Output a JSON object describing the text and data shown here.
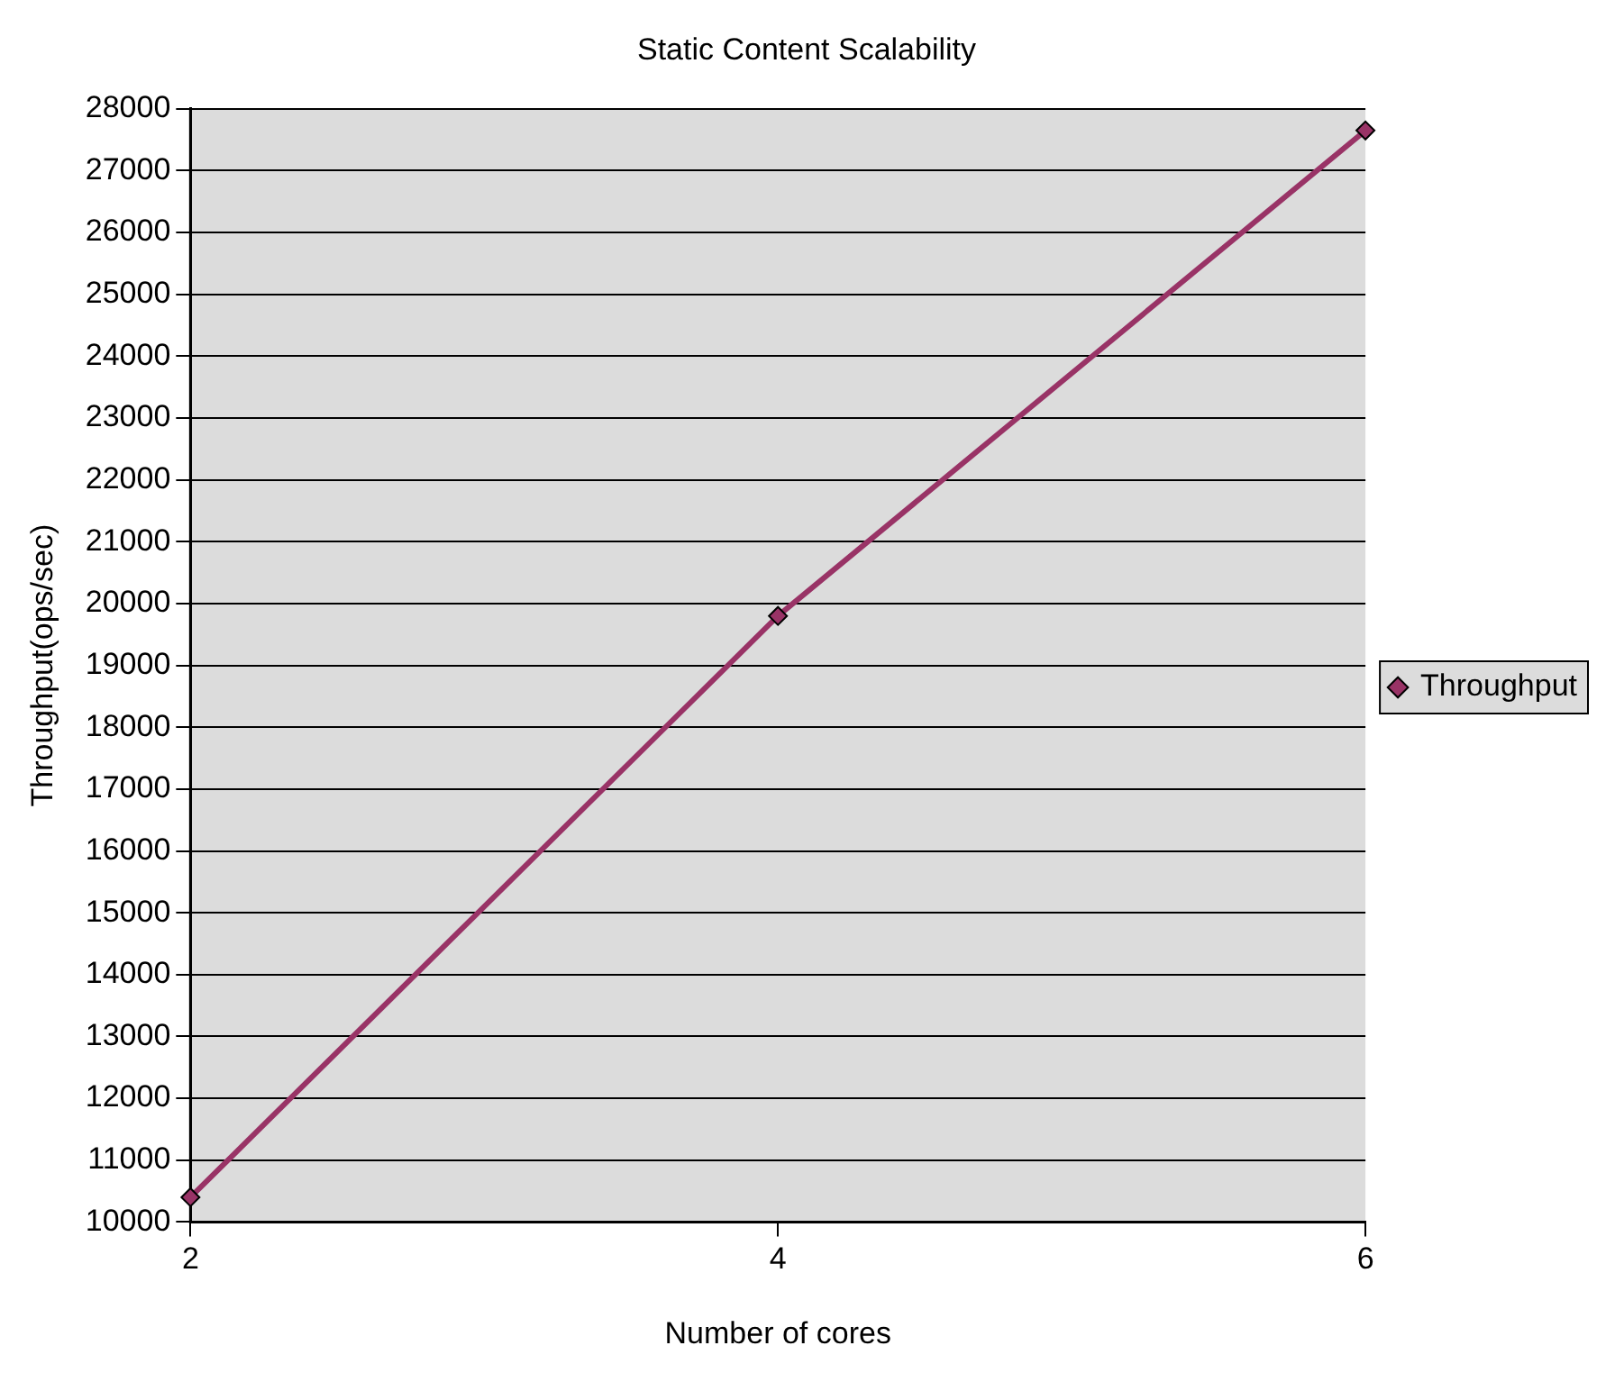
{
  "chart_data": {
    "type": "line",
    "title": "Static Content Scalability",
    "xlabel": "Number of cores",
    "ylabel": "Throughput(ops/sec)",
    "x": [
      2,
      4,
      6
    ],
    "series": [
      {
        "name": "Throughput",
        "color": "#993366",
        "values": [
          10400,
          19800,
          27650
        ]
      }
    ],
    "xlim": [
      2,
      6
    ],
    "xticks": [
      2,
      4,
      6
    ],
    "ylim": [
      10000,
      28000
    ],
    "yticks": [
      10000,
      11000,
      12000,
      13000,
      14000,
      15000,
      16000,
      17000,
      18000,
      19000,
      20000,
      21000,
      22000,
      23000,
      24000,
      25000,
      26000,
      27000,
      28000
    ],
    "grid": "y",
    "legend": "right",
    "marker": "diamond",
    "line_style": "solid"
  }
}
